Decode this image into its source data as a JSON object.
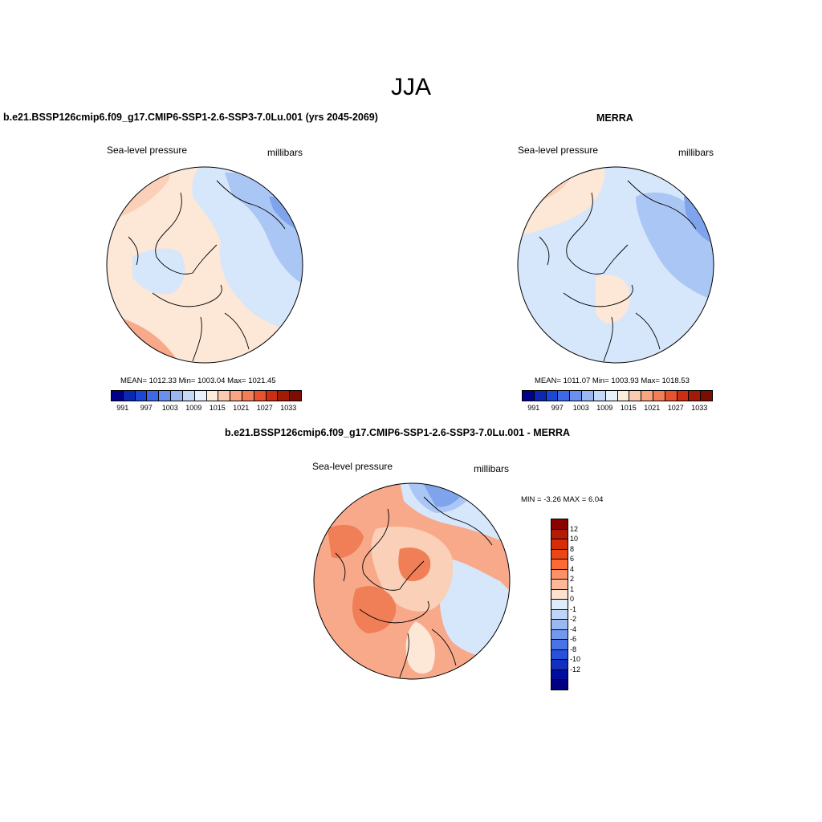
{
  "season": "JJA",
  "panels": {
    "model": {
      "title": "b.e21.BSSP126cmip6.f09_g17.CMIP6-SSP1-2.6-SSP3-7.0Lu.001 (yrs 2045-2069)",
      "variable": "Sea-level pressure",
      "units": "millibars",
      "stats": "MEAN= 1012.33  Min= 1003.04  Max= 1021.45"
    },
    "obs": {
      "title": "MERRA",
      "variable": "Sea-level pressure",
      "units": "millibars",
      "stats": "MEAN= 1011.07  Min= 1003.93  Max= 1018.53"
    },
    "diff": {
      "title": "b.e21.BSSP126cmip6.f09_g17.CMIP6-SSP1-2.6-SSP3-7.0Lu.001 - MERRA",
      "variable": "Sea-level pressure",
      "units": "millibars",
      "minmax": "MIN =  -3.26 MAX =   6.04"
    }
  },
  "colorbars": {
    "absolute": {
      "colors": [
        "#00008b",
        "#0a28b4",
        "#1c46d4",
        "#3c6ae6",
        "#6890ec",
        "#9cb6f2",
        "#c6d8f8",
        "#e8f0fc",
        "#fdebdc",
        "#fccaaf",
        "#f9a582",
        "#f37e58",
        "#e8532f",
        "#cc2e12",
        "#a31a06",
        "#7d0d00"
      ],
      "ticks": [
        "991",
        "997",
        "1003",
        "1009",
        "1015",
        "1021",
        "1027",
        "1033"
      ]
    },
    "difference": {
      "colors": [
        "#8b0000",
        "#b41a05",
        "#d52e08",
        "#ee4516",
        "#fc6a38",
        "#fd9065",
        "#fdb89a",
        "#fde3cf",
        "#dfecfc",
        "#c0d4f8",
        "#9ab8f2",
        "#7198ec",
        "#4a74e6",
        "#2652dc",
        "#1030c0",
        "#000c9c",
        "#000080"
      ],
      "ticks": [
        "12",
        "10",
        "8",
        "6",
        "4",
        "2",
        "1",
        "0",
        "-1",
        "-2",
        "-4",
        "-6",
        "-8",
        "-10",
        "-12"
      ]
    }
  },
  "map_colors": {
    "light_blue": "#d6e6fb",
    "mid_blue": "#aac6f4",
    "blue": "#7fa4ec",
    "cream": "#fde7d6",
    "peach": "#fbd0b8",
    "salmon": "#f8a98a",
    "orange": "#f07f57",
    "deep_orange": "#e85c33"
  }
}
